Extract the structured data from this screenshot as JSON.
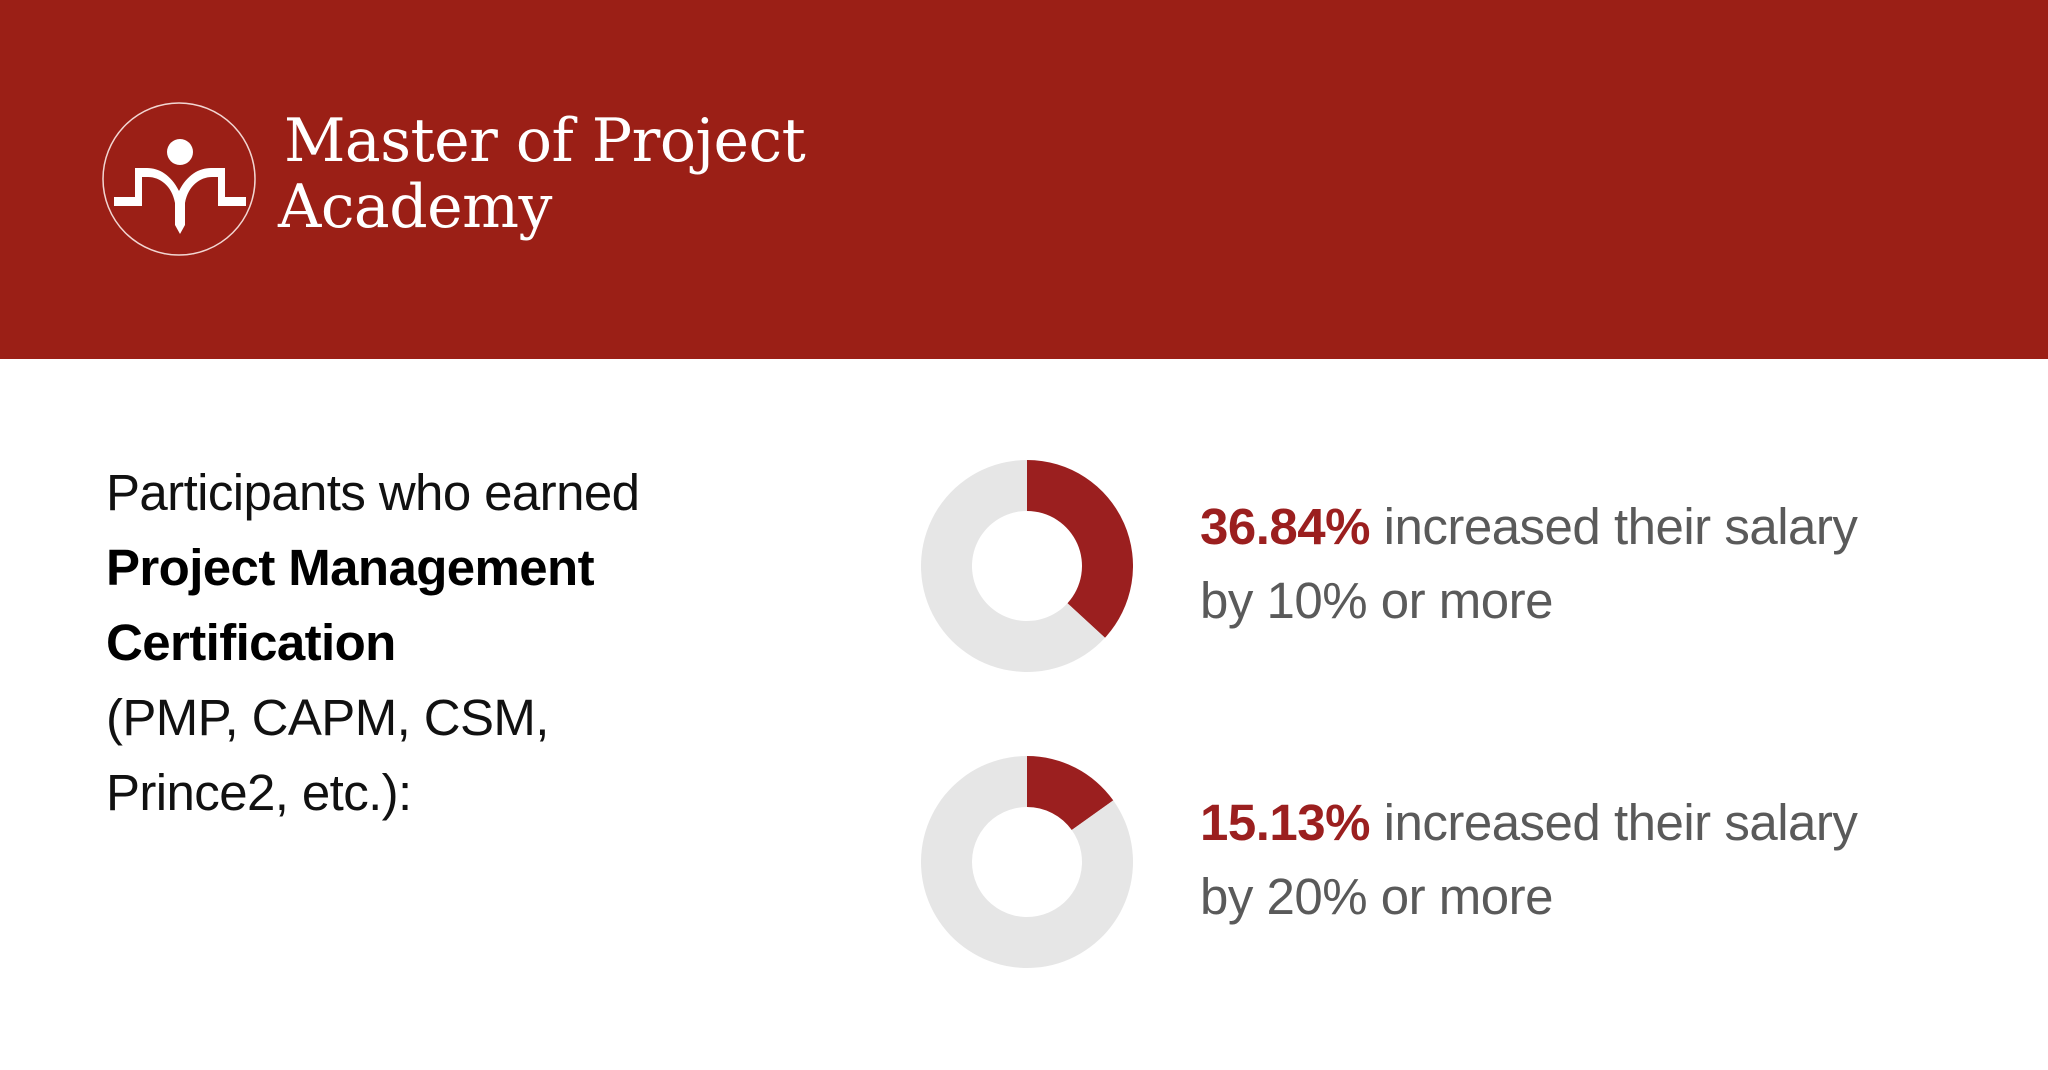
{
  "header": {
    "brand_line1": "Master of Project",
    "brand_line2": "Academy",
    "background_color": "#9B1F16",
    "logo_icon": "person-with-open-book-icon"
  },
  "intro": {
    "line1": "Participants who earned",
    "line2_bold": "Project Management",
    "line3_bold": "Certification",
    "line4": "(PMP, CAPM, CSM,",
    "line5": "Prince2, etc.):"
  },
  "stats": [
    {
      "percent_label": "36.84%",
      "text_line1": "increased their salary",
      "text_line2": "by 10% or more"
    },
    {
      "percent_label": "15.13%",
      "text_line1": "increased their salary",
      "text_line2": "by 20% or more"
    }
  ],
  "colors": {
    "accent": "#9B1F1F",
    "track": "#E6E6E6",
    "body_text": "#5A5A5A"
  },
  "chart_data": [
    {
      "type": "pie",
      "subtype": "donut",
      "title": "36.84% increased their salary by 10% or more",
      "categories": [
        "Increased salary by 10% or more",
        "Other"
      ],
      "values": [
        36.84,
        63.16
      ],
      "colors": [
        "#9B1F1F",
        "#E6E6E6"
      ]
    },
    {
      "type": "pie",
      "subtype": "donut",
      "title": "15.13% increased their salary by 20% or more",
      "categories": [
        "Increased salary by 20% or more",
        "Other"
      ],
      "values": [
        15.13,
        84.87
      ],
      "colors": [
        "#9B1F1F",
        "#E6E6E6"
      ]
    }
  ]
}
